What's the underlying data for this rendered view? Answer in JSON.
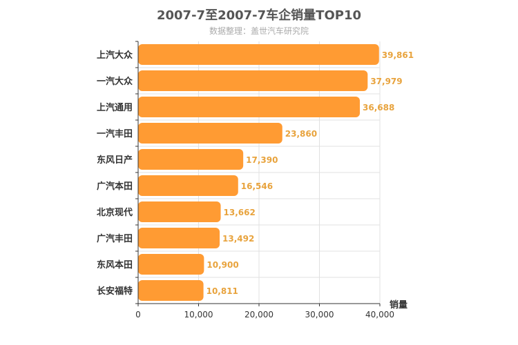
{
  "chart_data": {
    "type": "bar",
    "orientation": "horizontal",
    "title": "2007-7至2007-7车企销量TOP10",
    "subtitle": "数据整理：盖世汽车研究院",
    "categories": [
      "上汽大众",
      "一汽大众",
      "上汽通用",
      "一汽丰田",
      "东风日产",
      "广汽本田",
      "北京现代",
      "广汽丰田",
      "东风本田",
      "长安福特"
    ],
    "values": [
      39861,
      37979,
      36688,
      23860,
      17390,
      16546,
      13662,
      13492,
      10900,
      10811
    ],
    "value_labels": [
      "39,861",
      "37,979",
      "36,688",
      "23,860",
      "17,390",
      "16,546",
      "13,662",
      "13,492",
      "10,900",
      "10,811"
    ],
    "xlabel": "销量",
    "ylabel": "",
    "xlim": [
      0,
      40000
    ],
    "xticks": [
      0,
      10000,
      20000,
      30000,
      40000
    ],
    "xtick_labels": [
      "0",
      "10,000",
      "20,000",
      "30,000",
      "40,000"
    ],
    "grid": true,
    "bar_color": "#ff9b33",
    "value_label_color": "#e8a33d"
  }
}
